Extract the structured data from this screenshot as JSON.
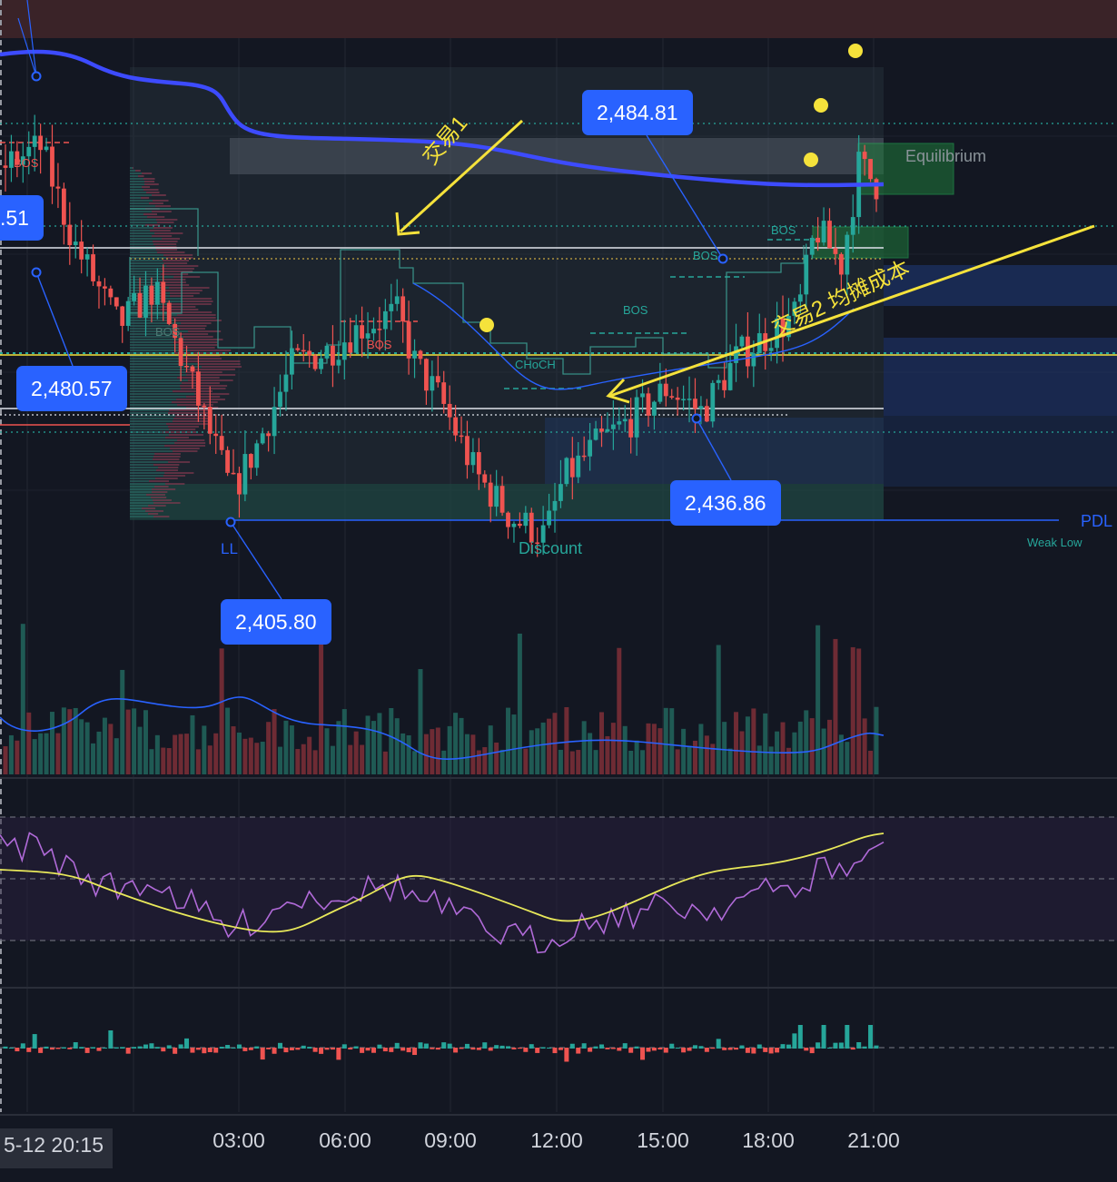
{
  "colors": {
    "background": "#131722",
    "up": "#26a69a",
    "down": "#ef5350",
    "vwap": "#3d4bff",
    "annotation": "#f5e23b",
    "tag": "#2962ff",
    "rsi": "#b06ad8",
    "rsi_ma": "#e8e85a"
  },
  "price_tags": {
    "left_cut": ".51",
    "high_marker": "2,484.81",
    "mid_left": "2,480.57",
    "low_right": "2,436.86",
    "ll_price": "2,405.80"
  },
  "labels": {
    "bos": "BOS",
    "choch": "CHoCH",
    "equilibrium": "Equilibrium",
    "discount": "Discount",
    "ll": "LL",
    "pdl": "PDL",
    "weak_low": "Weak Low",
    "trade1": "交易1",
    "trade2": "交易2 均摊成本"
  },
  "time_axis": {
    "start": "5-12  20:15",
    "ticks": [
      "03:00",
      "06:00",
      "09:00",
      "12:00",
      "15:00",
      "18:00",
      "21:00"
    ]
  },
  "chart_data": {
    "type": "candlestick",
    "x_ticks": [
      "5-12 20:15",
      "03:00",
      "06:00",
      "09:00",
      "12:00",
      "15:00",
      "18:00",
      "21:00"
    ],
    "key_levels": {
      "high_marker": 2484.81,
      "mid_level": 2480.57,
      "low_marker": 2436.86,
      "ll": 2405.8
    },
    "close_path": [
      {
        "t": 0,
        "v": 2478
      },
      {
        "t": 0.04,
        "v": 2481
      },
      {
        "t": 0.08,
        "v": 2465
      },
      {
        "t": 0.13,
        "v": 2452
      },
      {
        "t": 0.17,
        "v": 2458
      },
      {
        "t": 0.21,
        "v": 2444
      },
      {
        "t": 0.26,
        "v": 2425
      },
      {
        "t": 0.29,
        "v": 2433
      },
      {
        "t": 0.33,
        "v": 2446
      },
      {
        "t": 0.37,
        "v": 2448
      },
      {
        "t": 0.41,
        "v": 2452
      },
      {
        "t": 0.45,
        "v": 2454
      },
      {
        "t": 0.47,
        "v": 2446
      },
      {
        "t": 0.5,
        "v": 2440
      },
      {
        "t": 0.54,
        "v": 2428
      },
      {
        "t": 0.58,
        "v": 2421
      },
      {
        "t": 0.62,
        "v": 2418
      },
      {
        "t": 0.64,
        "v": 2427
      },
      {
        "t": 0.68,
        "v": 2433
      },
      {
        "t": 0.72,
        "v": 2437
      },
      {
        "t": 0.76,
        "v": 2442
      },
      {
        "t": 0.8,
        "v": 2438
      },
      {
        "t": 0.84,
        "v": 2447
      },
      {
        "t": 0.88,
        "v": 2451
      },
      {
        "t": 0.91,
        "v": 2454
      },
      {
        "t": 0.93,
        "v": 2468
      },
      {
        "t": 0.96,
        "v": 2462
      },
      {
        "t": 0.98,
        "v": 2478
      },
      {
        "t": 1,
        "v": 2475
      }
    ]
  }
}
